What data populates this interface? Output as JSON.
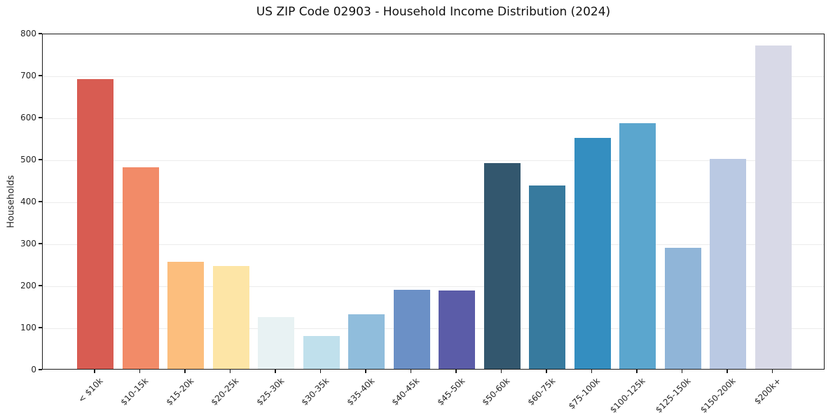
{
  "chart_data": {
    "type": "bar",
    "title": "US ZIP Code 02903 - Household Income Distribution (2024)",
    "xlabel": "",
    "ylabel": "Households",
    "categories": [
      "< $10k",
      "$10-15k",
      "$15-20k",
      "$20-25k",
      "$25-30k",
      "$30-35k",
      "$35-40k",
      "$40-45k",
      "$45-50k",
      "$50-60k",
      "$60-75k",
      "$75-100k",
      "$100-125k",
      "$125-150k",
      "$150-200k",
      "$200k+"
    ],
    "values": [
      690,
      480,
      255,
      245,
      124,
      78,
      130,
      188,
      186,
      490,
      437,
      550,
      585,
      289,
      500,
      770
    ],
    "bar_colors": [
      "#d85c52",
      "#f28b68",
      "#fcbe7d",
      "#fde5a6",
      "#e8f2f3",
      "#c0e0ec",
      "#90bddc",
      "#6b90c6",
      "#5b5ca8",
      "#33576e",
      "#377a9e",
      "#348ec0",
      "#5ba6ce",
      "#90b5d8",
      "#bac9e3",
      "#d8d9e7"
    ],
    "ylim": [
      0,
      800
    ],
    "yticks": [
      0,
      100,
      200,
      300,
      400,
      500,
      600,
      700,
      800
    ],
    "grid": "horizontal",
    "legend_position": "none",
    "axis_color": "#262626",
    "gridline_color": "#ebebeb",
    "background_color": "#ffffff"
  }
}
